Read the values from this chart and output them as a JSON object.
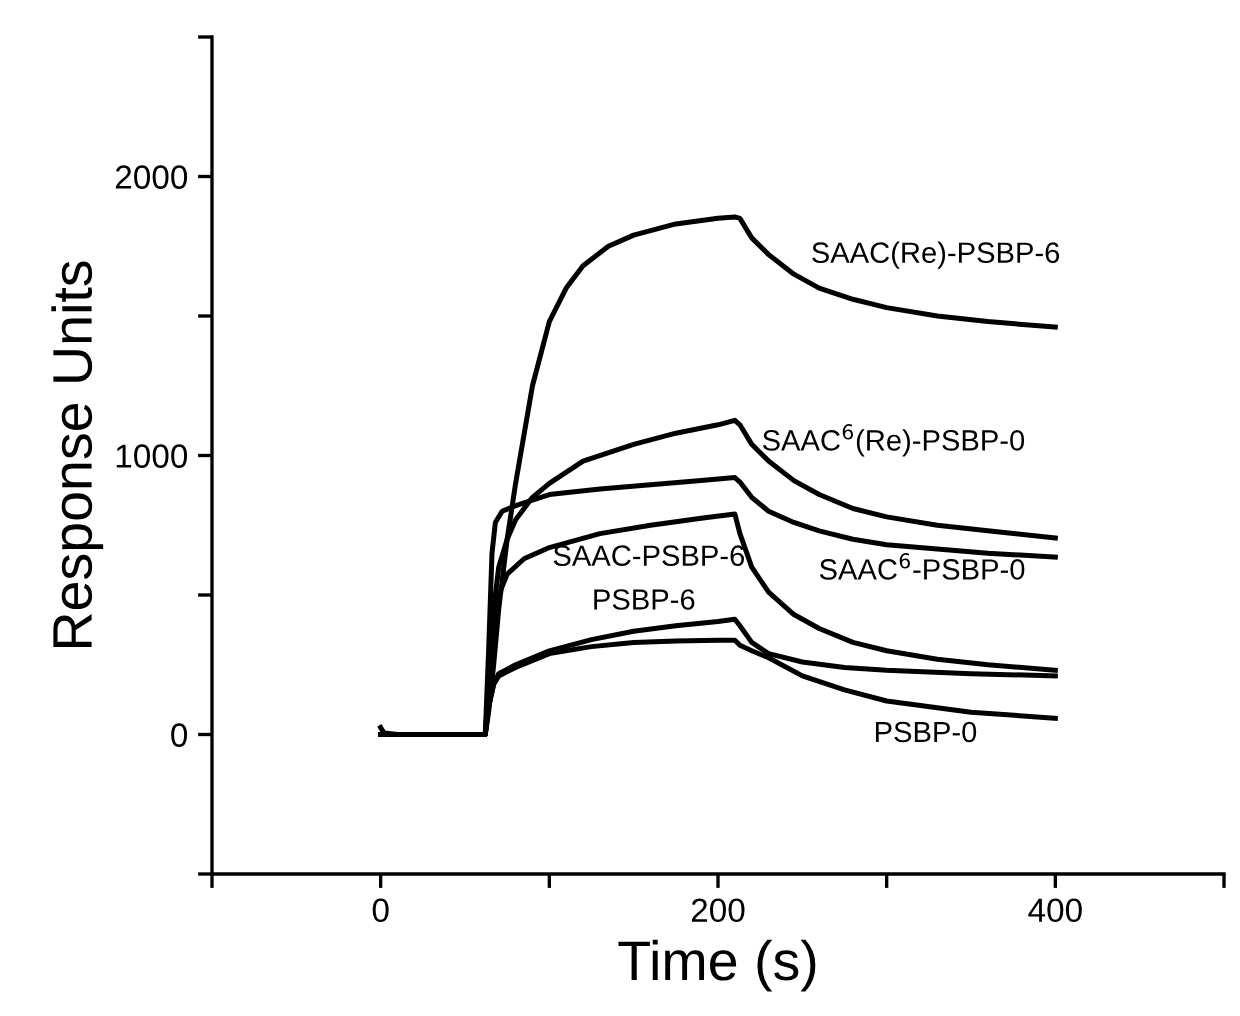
{
  "chart_data": {
    "type": "line",
    "xlabel": "Time (s)",
    "ylabel": "Response Units",
    "xlim": [
      -100,
      500
    ],
    "xticks": [
      {
        "value": -100,
        "label": null
      },
      0,
      {
        "value": 100,
        "label": null
      },
      200,
      {
        "value": 300,
        "label": null
      },
      400,
      {
        "value": 500,
        "label": null
      }
    ],
    "ylim": [
      -500,
      2500
    ],
    "yticks": [
      {
        "value": -500,
        "label": null
      },
      0,
      {
        "value": 500,
        "label": null
      },
      1000,
      {
        "value": 1500,
        "label": null
      },
      2000,
      {
        "value": 2500,
        "label": null
      }
    ],
    "grid": false,
    "legend": false,
    "marker": "none",
    "line_style": "solid",
    "series": [
      {
        "name": "SAAC(Re)-PSBP-6",
        "color": "#000000",
        "x": [
          0,
          2,
          10,
          40,
          62,
          64,
          67,
          70,
          75,
          80,
          90,
          100,
          110,
          120,
          135,
          150,
          175,
          200,
          210,
          213,
          220,
          230,
          245,
          260,
          280,
          300,
          330,
          360,
          400
        ],
        "values": [
          25,
          5,
          0,
          0,
          0,
          80,
          250,
          450,
          700,
          900,
          1250,
          1480,
          1600,
          1680,
          1750,
          1790,
          1830,
          1850,
          1855,
          1850,
          1780,
          1720,
          1650,
          1600,
          1560,
          1530,
          1500,
          1480,
          1460
        ]
      },
      {
        "name": "SAAC$^{6}$(Re)-PSBP-0",
        "color": "#000000",
        "x": [
          0,
          62,
          64,
          67,
          70,
          75,
          80,
          90,
          100,
          120,
          150,
          175,
          200,
          210,
          213,
          220,
          230,
          245,
          260,
          280,
          300,
          330,
          360,
          400
        ],
        "values": [
          0,
          0,
          150,
          450,
          600,
          700,
          770,
          850,
          900,
          980,
          1040,
          1080,
          1110,
          1126,
          1110,
          1040,
          980,
          910,
          860,
          810,
          780,
          750,
          730,
          704
        ]
      },
      {
        "name": "SAAC$^{6}$-PSBP-0",
        "color": "#000000",
        "x": [
          0,
          62,
          64,
          66,
          68,
          72,
          80,
          100,
          130,
          160,
          190,
          210,
          213,
          220,
          230,
          245,
          260,
          280,
          300,
          330,
          360,
          400
        ],
        "values": [
          0,
          0,
          300,
          650,
          760,
          800,
          820,
          860,
          880,
          895,
          910,
          921,
          905,
          850,
          800,
          760,
          730,
          700,
          680,
          665,
          650,
          636
        ]
      },
      {
        "name": "SAAC-PSBP-6",
        "color": "#000000",
        "x": [
          0,
          62,
          64,
          67,
          70,
          75,
          85,
          100,
          130,
          160,
          190,
          210,
          213,
          220,
          230,
          245,
          260,
          280,
          300,
          330,
          360,
          400
        ],
        "values": [
          0,
          0,
          150,
          380,
          500,
          575,
          630,
          670,
          720,
          750,
          775,
          790,
          720,
          600,
          510,
          430,
          380,
          330,
          300,
          270,
          250,
          230
        ]
      },
      {
        "name": "PSBP-6",
        "color": "#000000",
        "x": [
          0,
          62,
          64,
          67,
          70,
          80,
          100,
          125,
          150,
          175,
          200,
          210,
          213,
          220,
          230,
          250,
          275,
          300,
          350,
          400
        ],
        "values": [
          0,
          0,
          100,
          180,
          218,
          250,
          300,
          340,
          370,
          390,
          405,
          413,
          390,
          330,
          290,
          260,
          240,
          230,
          218,
          210
        ]
      },
      {
        "name": "PSBP-0",
        "color": "#000000",
        "x": [
          0,
          62,
          64,
          67,
          70,
          80,
          100,
          125,
          150,
          175,
          200,
          210,
          213,
          220,
          230,
          250,
          275,
          300,
          350,
          400
        ],
        "values": [
          0,
          0,
          100,
          180,
          210,
          240,
          290,
          315,
          330,
          335,
          338,
          338,
          320,
          300,
          275,
          210,
          160,
          120,
          80,
          58
        ]
      }
    ]
  }
}
